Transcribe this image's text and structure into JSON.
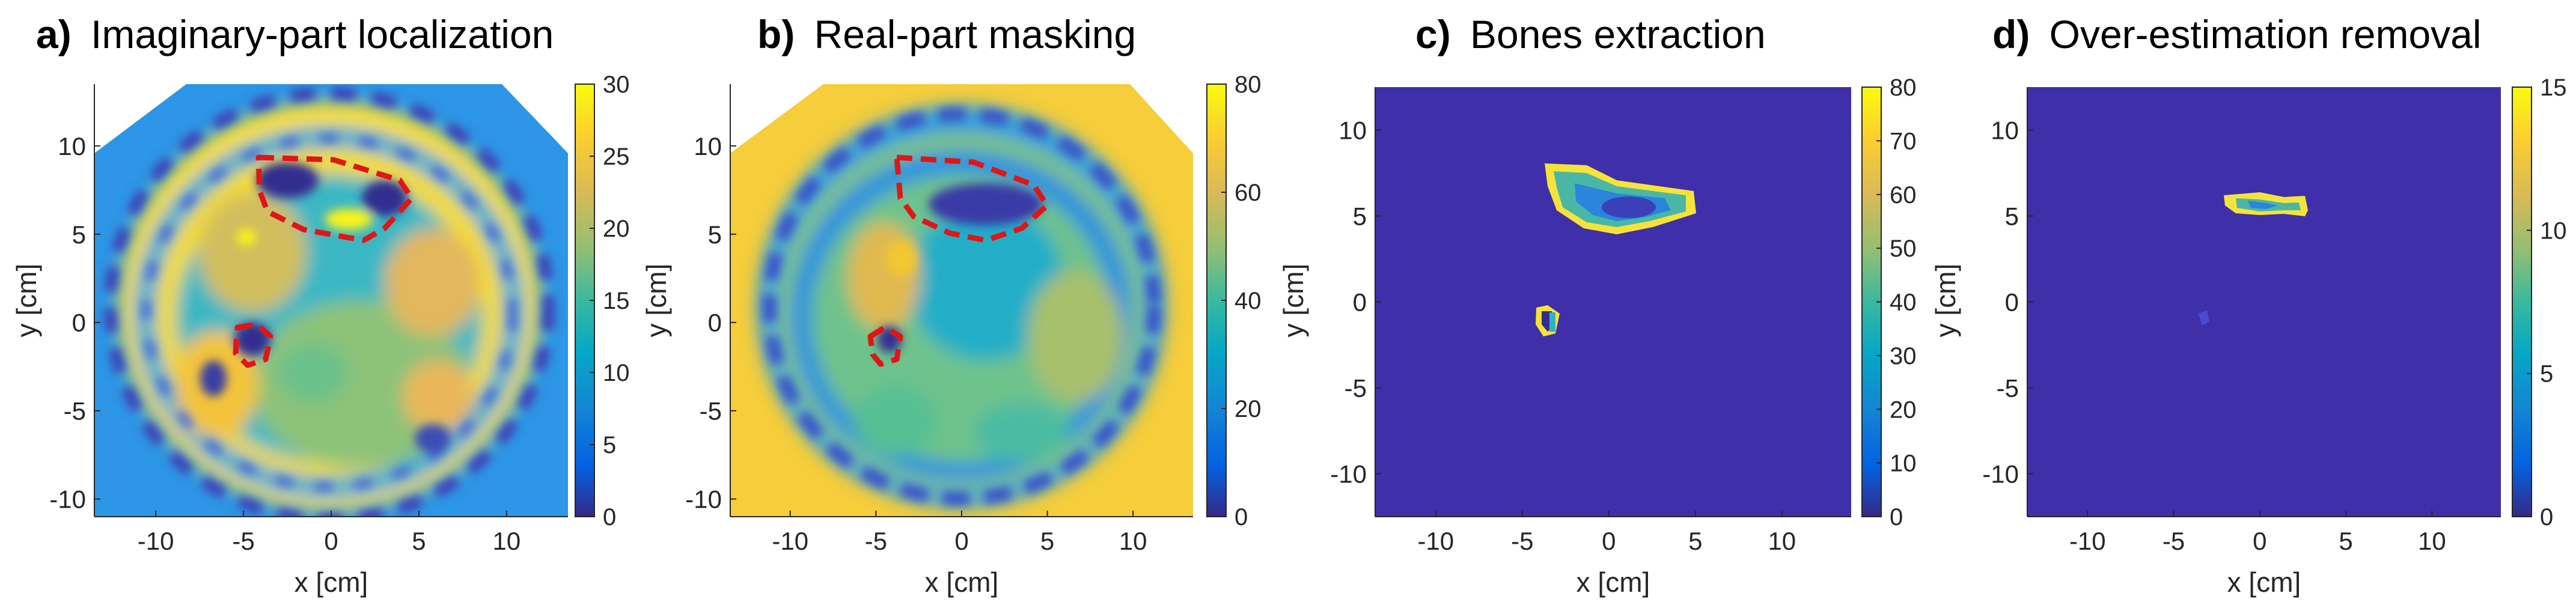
{
  "chart_data": [
    {
      "type": "heatmap",
      "title_letter": "a)",
      "title": "Imaginary-part localization",
      "xlabel": "x [cm]",
      "ylabel": "y [cm]",
      "xlim": [
        -13.5,
        13.5
      ],
      "ylim": [
        -11,
        13.5
      ],
      "xticks": [
        -10,
        -5,
        0,
        5,
        10
      ],
      "yticks": [
        -10,
        -5,
        0,
        5,
        10
      ],
      "colorbar": {
        "min": 0,
        "max": 30,
        "ticks": [
          0,
          5,
          10,
          15,
          20,
          25,
          30
        ]
      },
      "colormap": "parula",
      "outline": "red-dashed"
    },
    {
      "type": "heatmap",
      "title_letter": "b)",
      "title": "Real-part masking",
      "xlabel": "x [cm]",
      "ylabel": "y [cm]",
      "xlim": [
        -13.5,
        13.5
      ],
      "ylim": [
        -11,
        13.5
      ],
      "xticks": [
        -10,
        -5,
        0,
        5,
        10
      ],
      "yticks": [
        -10,
        -5,
        0,
        5,
        10
      ],
      "colorbar": {
        "min": 0,
        "max": 80,
        "ticks": [
          0,
          20,
          40,
          60,
          80
        ]
      },
      "colormap": "parula",
      "outline": "red-dashed"
    },
    {
      "type": "heatmap",
      "title_letter": "c)",
      "title": "Bones extraction",
      "xlabel": "x [cm]",
      "ylabel": "y [cm]",
      "xlim": [
        -13.5,
        14
      ],
      "ylim": [
        -12.5,
        12.5
      ],
      "xticks": [
        -10,
        -5,
        0,
        5,
        10
      ],
      "yticks": [
        -10,
        -5,
        0,
        5,
        10
      ],
      "colorbar": {
        "min": 0,
        "max": 80,
        "ticks": [
          0,
          10,
          20,
          30,
          40,
          50,
          60,
          70,
          80
        ]
      },
      "colormap": "parula"
    },
    {
      "type": "heatmap",
      "title_letter": "d)",
      "title": "Over-estimation removal",
      "xlabel": "x [cm]",
      "ylabel": "y [cm]",
      "xlim": [
        -13.5,
        14
      ],
      "ylim": [
        -12.5,
        12.5
      ],
      "xticks": [
        -10,
        -5,
        0,
        5,
        10
      ],
      "yticks": [
        -10,
        -5,
        0,
        5,
        10
      ],
      "colorbar": {
        "min": 0,
        "max": 15,
        "ticks": [
          0,
          5,
          10,
          15
        ]
      },
      "colormap": "parula"
    }
  ]
}
